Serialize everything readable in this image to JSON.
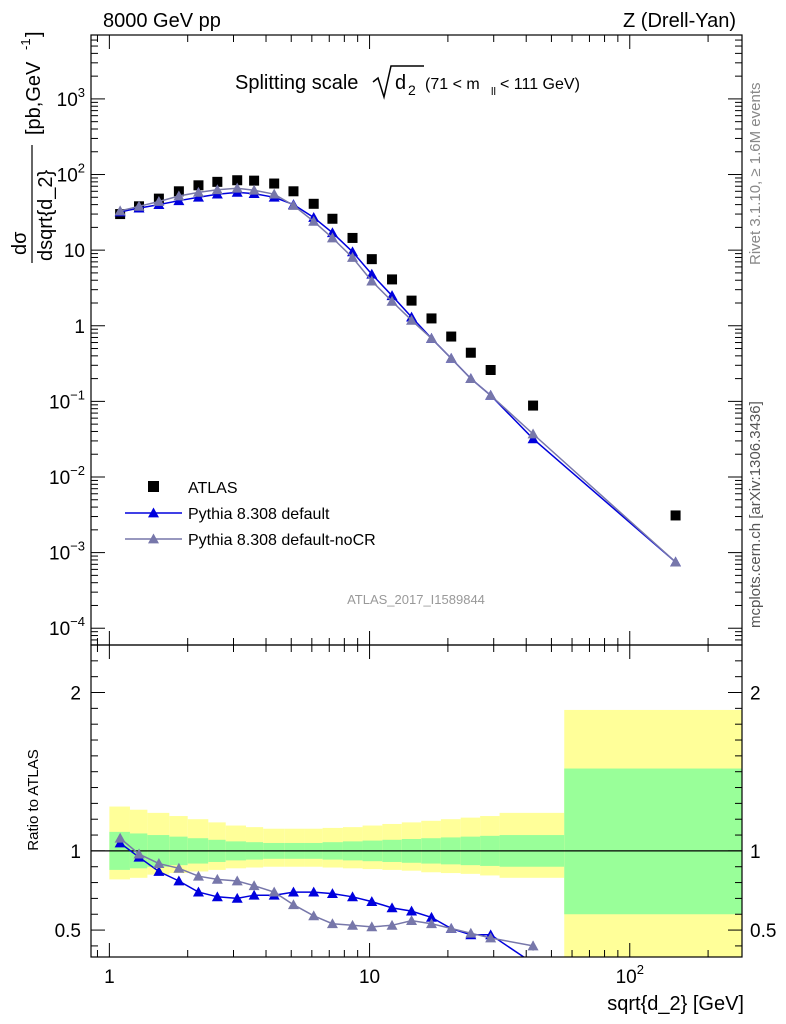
{
  "header": {
    "energy_label": "8000 GeV pp",
    "process_label": "Z (Drell-Yan)"
  },
  "side_labels": {
    "rivet": "Rivet 3.1.10, ≥ 1.6M events",
    "mcplots": "mcplots.cern.ch [arXiv:1306.3436]"
  },
  "watermark": "ATLAS_2017_I1589844",
  "colors": {
    "atlas": "#000000",
    "default": "#0000dd",
    "nocr": "#7777aa",
    "band_inner": "#99ff99",
    "band_outer": "#ffff99"
  },
  "chart_data": [
    {
      "type": "scatter",
      "title": "Splitting scale √d₂ (71 < m_ll < 111 GeV)",
      "title_parts": {
        "main": "Splitting scale",
        "radicand": "d",
        "sub": "2",
        "range_left": "(71 < m",
        "range_sub": "ll",
        "range_right": " < 111 GeV)"
      },
      "xlabel": "sqrt{d_2} [GeV]",
      "ylabel": "dσ / dsqrt{d_2} [pb,GeV⁻¹]",
      "ylabel_parts": {
        "numerator": "dσ",
        "denominator": "dsqrt{d_2}",
        "unit": "[pb,GeV",
        "unit_exp": "-1",
        "unit_close": "]"
      },
      "x_scale": "log",
      "y_scale": "log",
      "xlim": [
        0.85,
        270
      ],
      "ylim": [
        6e-05,
        7000
      ],
      "x_ticks": [
        {
          "value": 1,
          "label": "1"
        },
        {
          "value": 10,
          "label": "10"
        },
        {
          "value": 100,
          "label": "10",
          "exp": "2"
        }
      ],
      "y_ticks": [
        {
          "value": 0.0001,
          "label": "10",
          "exp": "−4"
        },
        {
          "value": 0.001,
          "label": "10",
          "exp": "−3"
        },
        {
          "value": 0.01,
          "label": "10",
          "exp": "−2"
        },
        {
          "value": 0.1,
          "label": "10",
          "exp": "−1"
        },
        {
          "value": 1,
          "label": "1"
        },
        {
          "value": 10,
          "label": "10"
        },
        {
          "value": 100,
          "label": "10",
          "exp": "2"
        },
        {
          "value": 1000,
          "label": "10",
          "exp": "3"
        }
      ],
      "legend_position": "bottom-left",
      "series": [
        {
          "name": "ATLAS",
          "marker": "square",
          "x": [
            1.1,
            1.3,
            1.55,
            1.85,
            2.2,
            2.6,
            3.1,
            3.6,
            4.3,
            5.1,
            6.1,
            7.2,
            8.6,
            10.2,
            12.2,
            14.5,
            17.3,
            20.6,
            24.5,
            29.2,
            42.5,
            150
          ],
          "y": [
            30,
            38,
            48,
            60,
            72,
            80,
            84,
            83,
            76,
            60,
            41,
            26,
            14.5,
            7.6,
            4.1,
            2.15,
            1.25,
            0.72,
            0.44,
            0.26,
            0.088,
            0.0031
          ]
        },
        {
          "name": "Pythia 8.308 default",
          "marker": "triangle",
          "x": [
            1.1,
            1.3,
            1.55,
            1.85,
            2.2,
            2.6,
            3.1,
            3.6,
            4.3,
            5.1,
            6.1,
            7.2,
            8.6,
            10.2,
            12.2,
            14.5,
            17.3,
            20.6,
            24.5,
            29.2,
            42.5,
            150
          ],
          "y": [
            32,
            36,
            40,
            45,
            50,
            55,
            58,
            56,
            50,
            40,
            27,
            17,
            9.5,
            4.8,
            2.5,
            1.3,
            0.68,
            0.37,
            0.2,
            0.12,
            0.032,
            0.00075
          ]
        },
        {
          "name": "Pythia 8.308 default-noCR",
          "marker": "triangle",
          "x": [
            1.1,
            1.3,
            1.55,
            1.85,
            2.2,
            2.6,
            3.1,
            3.6,
            4.3,
            5.1,
            6.1,
            7.2,
            8.6,
            10.2,
            12.2,
            14.5,
            17.3,
            20.6,
            24.5,
            29.2,
            42.5,
            150
          ],
          "y": [
            33,
            38,
            44,
            52,
            58,
            63,
            66,
            62,
            55,
            39,
            24,
            14.5,
            8,
            3.9,
            2.1,
            1.18,
            0.68,
            0.37,
            0.2,
            0.12,
            0.037,
            0.00075
          ]
        }
      ]
    },
    {
      "type": "line",
      "ylabel": "Ratio to ATLAS",
      "x_scale": "log",
      "y_scale": "linear",
      "xlim": [
        0.85,
        270
      ],
      "ylim": [
        0.33,
        2.3
      ],
      "y_ticks": [
        {
          "value": 0.5,
          "label": "0.5"
        },
        {
          "value": 1,
          "label": "1"
        },
        {
          "value": 2,
          "label": "2"
        }
      ],
      "reference_line": 1,
      "bands": {
        "edges": [
          1.0,
          1.2,
          1.4,
          1.7,
          2.0,
          2.4,
          2.8,
          3.35,
          3.9,
          4.7,
          5.6,
          6.6,
          7.9,
          9.4,
          11.2,
          13.3,
          15.8,
          18.8,
          22.4,
          26.6,
          31.6,
          56,
          270
        ],
        "inner_low": [
          0.88,
          0.89,
          0.9,
          0.91,
          0.92,
          0.93,
          0.94,
          0.945,
          0.95,
          0.95,
          0.95,
          0.945,
          0.94,
          0.935,
          0.93,
          0.925,
          0.92,
          0.915,
          0.91,
          0.905,
          0.9,
          0.6
        ],
        "inner_high": [
          1.12,
          1.11,
          1.1,
          1.09,
          1.08,
          1.07,
          1.06,
          1.055,
          1.05,
          1.05,
          1.05,
          1.055,
          1.06,
          1.065,
          1.07,
          1.075,
          1.08,
          1.085,
          1.09,
          1.095,
          1.1,
          1.52
        ],
        "outer_low": [
          0.82,
          0.83,
          0.85,
          0.86,
          0.87,
          0.88,
          0.89,
          0.895,
          0.9,
          0.9,
          0.9,
          0.895,
          0.89,
          0.885,
          0.88,
          0.875,
          0.865,
          0.86,
          0.855,
          0.845,
          0.83,
          0.33
        ],
        "outer_high": [
          1.28,
          1.26,
          1.24,
          1.22,
          1.2,
          1.18,
          1.16,
          1.15,
          1.14,
          1.14,
          1.14,
          1.145,
          1.15,
          1.16,
          1.17,
          1.18,
          1.19,
          1.2,
          1.21,
          1.22,
          1.24,
          1.89
        ]
      },
      "series": [
        {
          "name": "Pythia 8.308 default",
          "x": [
            1.1,
            1.3,
            1.55,
            1.85,
            2.2,
            2.6,
            3.1,
            3.6,
            4.3,
            5.1,
            6.1,
            7.2,
            8.6,
            10.2,
            12.2,
            14.5,
            17.3,
            20.6,
            24.5,
            29.2,
            42.5
          ],
          "y": [
            1.05,
            0.96,
            0.87,
            0.81,
            0.74,
            0.71,
            0.7,
            0.72,
            0.72,
            0.74,
            0.74,
            0.73,
            0.71,
            0.68,
            0.64,
            0.62,
            0.58,
            0.51,
            0.47,
            0.47,
            0.29
          ],
          "line_extra_x": [
            70
          ],
          "line_extra_y": [
            0.1
          ]
        },
        {
          "name": "Pythia 8.308 default-noCR",
          "x": [
            1.1,
            1.3,
            1.55,
            1.85,
            2.2,
            2.6,
            3.1,
            3.6,
            4.3,
            5.1,
            6.1,
            7.2,
            8.6,
            10.2,
            12.2,
            14.5,
            17.3,
            20.6,
            24.5,
            29.2,
            42.5
          ],
          "y": [
            1.08,
            0.98,
            0.92,
            0.89,
            0.84,
            0.82,
            0.81,
            0.78,
            0.74,
            0.66,
            0.59,
            0.54,
            0.53,
            0.52,
            0.53,
            0.56,
            0.54,
            0.51,
            0.48,
            0.45,
            0.4
          ],
          "errors": [
            0,
            0,
            0,
            0,
            0,
            0,
            0,
            0,
            0,
            0,
            0,
            0,
            0,
            0,
            0,
            0,
            0,
            0,
            0.02,
            0.02,
            0.03
          ]
        }
      ]
    }
  ]
}
